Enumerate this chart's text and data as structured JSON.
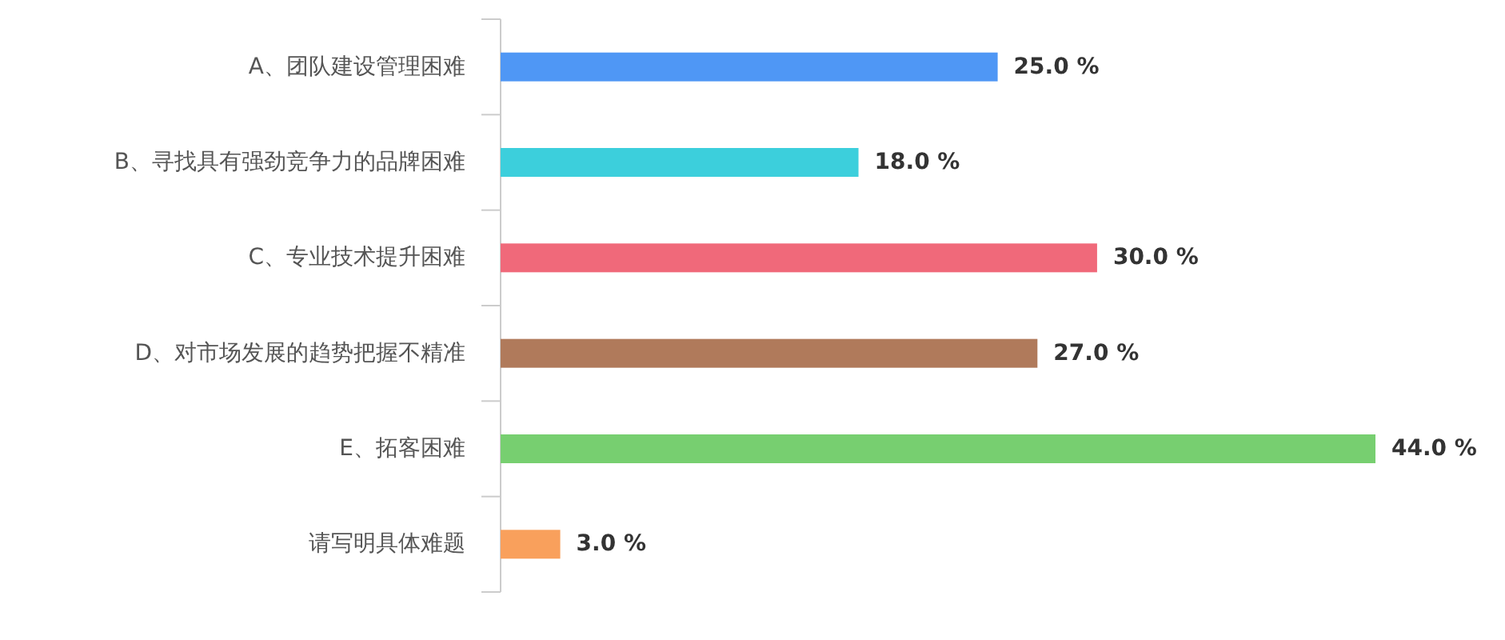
{
  "chart_data": {
    "type": "bar",
    "orientation": "horizontal",
    "categories": [
      "A、团队建设管理困难",
      "B、寻找具有强劲竞争力的品牌困难",
      "C、专业技术提升困难",
      "D、对市场发展的趋势把握不精准",
      "E、拓客困难",
      "请写明具体难题"
    ],
    "values": [
      25.0,
      18.0,
      30.0,
      27.0,
      44.0,
      3.0
    ],
    "colors": [
      "#4f97f5",
      "#3ccfdc",
      "#f0697a",
      "#b07a5b",
      "#77cf70",
      "#f9a05c"
    ],
    "value_labels": [
      "25.0 %",
      "18.0 %",
      "30.0 %",
      "27.0 %",
      "44.0 %",
      "3.0 %"
    ],
    "grid": false,
    "legend": false
  }
}
